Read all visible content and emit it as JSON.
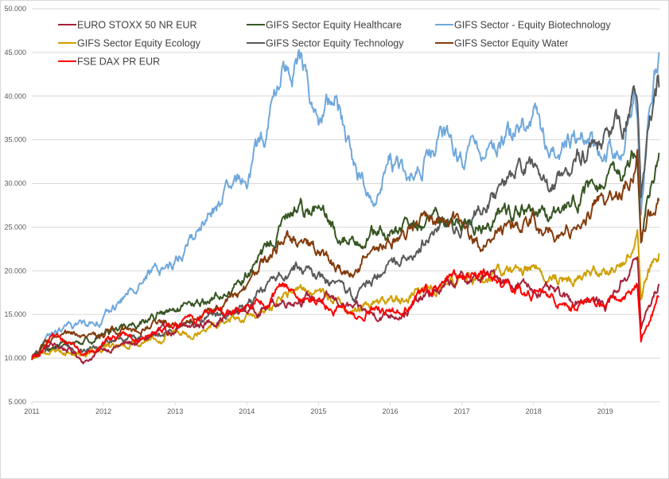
{
  "chart_data": {
    "type": "line",
    "title": "",
    "xlabel": "",
    "ylabel": "",
    "ylim": [
      5000,
      50000
    ],
    "xlim": [
      2011.0,
      2019.75
    ],
    "grid": true,
    "legend_position": "top",
    "y_ticks": [
      "5.000",
      "10.000",
      "15.000",
      "20.000",
      "25.000",
      "30.000",
      "35.000",
      "40.000",
      "45.000",
      "50.000"
    ],
    "y_tick_values": [
      5000,
      10000,
      15000,
      20000,
      25000,
      30000,
      35000,
      40000,
      45000,
      50000
    ],
    "x_ticks": [
      "2011",
      "2012",
      "2013",
      "2014",
      "2015",
      "2016",
      "2017",
      "2018",
      "2019"
    ],
    "x_tick_values": [
      2011,
      2012,
      2013,
      2014,
      2015,
      2016,
      2017,
      2018,
      2019
    ],
    "x": [
      2011.0,
      2011.25,
      2011.5,
      2011.75,
      2012.0,
      2012.25,
      2012.5,
      2012.75,
      2013.0,
      2013.25,
      2013.5,
      2013.75,
      2014.0,
      2014.25,
      2014.5,
      2014.75,
      2015.0,
      2015.25,
      2015.5,
      2015.75,
      2016.0,
      2016.25,
      2016.5,
      2016.75,
      2017.0,
      2017.25,
      2017.5,
      2017.75,
      2018.0,
      2018.25,
      2018.5,
      2018.75,
      2019.0,
      2019.25,
      2019.4,
      2019.45,
      2019.5,
      2019.6,
      2019.75
    ],
    "series": [
      {
        "name": "EURO STOXX 50 NR EUR",
        "color": "#A5223A",
        "values": [
          10000,
          11500,
          11000,
          9700,
          11000,
          11500,
          11800,
          12800,
          13000,
          13500,
          14200,
          15000,
          15500,
          15800,
          16500,
          17000,
          16800,
          16500,
          15500,
          15000,
          15000,
          15500,
          17000,
          18000,
          19000,
          19000,
          19500,
          18500,
          18000,
          17500,
          16500,
          17000,
          16000,
          19000,
          21000,
          21500,
          13500,
          15500,
          18500
        ]
      },
      {
        "name": "GIFS Sector Equity Healthcare",
        "color": "#375623",
        "values": [
          10000,
          11300,
          11600,
          12000,
          12800,
          13800,
          14200,
          15000,
          15200,
          15800,
          16800,
          17500,
          19500,
          22000,
          25500,
          27500,
          27000,
          24000,
          23500,
          24500,
          24000,
          25000,
          25500,
          26000,
          25500,
          25000,
          26500,
          27000,
          26500,
          25500,
          28000,
          29000,
          29500,
          31000,
          33500,
          34000,
          25000,
          30000,
          33500
        ]
      },
      {
        "name": "GIFS Sector - Equity Biotechnology",
        "color": "#6FA8DC",
        "values": [
          10000,
          12500,
          13500,
          14000,
          14800,
          16500,
          19000,
          20000,
          21000,
          24000,
          26500,
          28500,
          31000,
          35500,
          43000,
          44000,
          37000,
          40000,
          32000,
          28000,
          33000,
          30000,
          33000,
          35000,
          33000,
          33500,
          35000,
          36000,
          38000,
          33000,
          36000,
          35000,
          33000,
          35000,
          41000,
          38000,
          27000,
          38000,
          45000
        ]
      },
      {
        "name": "GIFS Sector Equity Ecology",
        "color": "#D09F00",
        "values": [
          10000,
          11000,
          10800,
          10500,
          11000,
          11500,
          12000,
          12500,
          13000,
          13300,
          14000,
          14500,
          14500,
          15000,
          17000,
          18000,
          17500,
          16500,
          15500,
          16500,
          16500,
          17000,
          18000,
          18500,
          19000,
          19000,
          20000,
          19500,
          20500,
          19500,
          19000,
          20000,
          20000,
          21000,
          23500,
          24500,
          17000,
          20000,
          22000
        ]
      },
      {
        "name": "GIFS Sector Equity Technology",
        "color": "#595959",
        "values": [
          10000,
          11200,
          11300,
          10800,
          11500,
          12200,
          12300,
          13000,
          13500,
          14000,
          14500,
          15000,
          16000,
          17500,
          20000,
          20500,
          19500,
          18000,
          17000,
          19000,
          21000,
          22000,
          24000,
          25000,
          25500,
          27000,
          29000,
          31000,
          31500,
          29000,
          32500,
          33500,
          35000,
          37000,
          40000,
          39000,
          28000,
          36000,
          41000
        ]
      },
      {
        "name": "GIFS Sector Equity Water",
        "color": "#843C0C",
        "values": [
          10000,
          12000,
          12500,
          12000,
          13000,
          13500,
          13500,
          14000,
          14000,
          14500,
          15500,
          16500,
          18000,
          21000,
          24500,
          23500,
          22000,
          20500,
          19500,
          22500,
          23500,
          24500,
          26000,
          25500,
          25000,
          23000,
          25000,
          24000,
          26000,
          24500,
          25000,
          27000,
          27500,
          29000,
          32000,
          34500,
          24000,
          27000,
          28000
        ]
      },
      {
        "name": "FSE DAX PR EUR",
        "color": "#FF0000",
        "values": [
          10000,
          12000,
          11500,
          10500,
          11500,
          12500,
          12500,
          13500,
          14000,
          14500,
          15000,
          15500,
          15500,
          16500,
          18000,
          17500,
          16500,
          15500,
          14500,
          15500,
          15000,
          16000,
          17500,
          18500,
          19000,
          19500,
          19000,
          17500,
          17500,
          17000,
          15500,
          16500,
          16000,
          17000,
          18500,
          19000,
          12000,
          14500,
          17000
        ]
      }
    ]
  }
}
